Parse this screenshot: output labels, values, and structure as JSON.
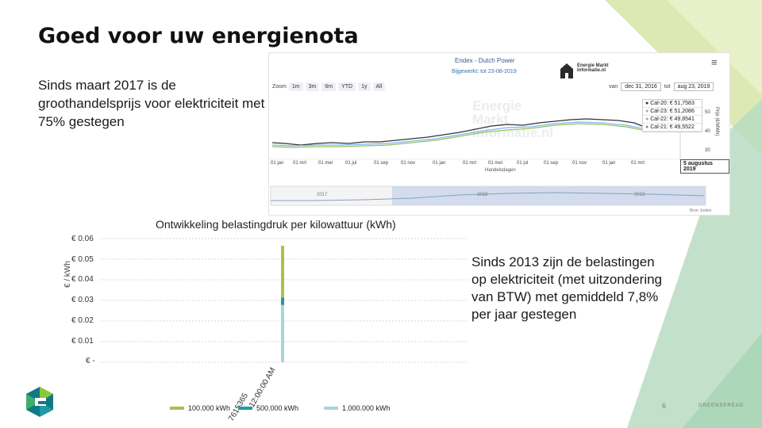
{
  "slide": {
    "title": "Goed voor uw energienota",
    "lead_text": "Sinds maart 2017 is de groothandelsprijs voor elektriciteit met 75% gestegen",
    "right_text": "Sinds 2013 zijn de belastingen op elektriciteit (met uitzondering van BTW) met gemiddeld 7,8% per jaar gestegen",
    "page_number": "6",
    "footer_brand": "GREENSPREAD",
    "accent_colors": {
      "light_green": "#dde9b5",
      "mint": "#b8dcc1",
      "teal": "#1f9aa6"
    }
  },
  "endex": {
    "title": "Endex - Dutch Power",
    "updated": "Bijgewerkt: tot 23-08-2019",
    "brand": "Energie Markt Informatie.nl",
    "menu_icon": "hamburger-icon",
    "zoom_label": "Zoom",
    "zoom_options": [
      "1m",
      "3m",
      "6m",
      "YTD",
      "1y",
      "All"
    ],
    "range_from_label": "van",
    "range_from": "dec 31, 2016",
    "range_to_label": "tot",
    "range_to": "aug 23, 2019",
    "watermark_lines": [
      "Energie",
      "Markt",
      "Informatie.nl"
    ],
    "legend": [
      {
        "label": "Cal-20",
        "value": "€ 51,7583",
        "color": "#333333"
      },
      {
        "label": "Cal-23",
        "value": "€ 51,2086",
        "color": "#7cb5ec"
      },
      {
        "label": "Cal-22",
        "value": "€ 49,8541",
        "color": "#90c060"
      },
      {
        "label": "Cal-21",
        "value": "€ 49,5522",
        "color": "#888888"
      }
    ],
    "date_label": "5 augustus 2019",
    "x_ticks": [
      "01 jan",
      "01 mrt",
      "01 mei",
      "01 jul",
      "01 sep",
      "01 nov",
      "01 jan",
      "01 mrt",
      "01 mei",
      "01 jul",
      "01 sep",
      "01 nov",
      "01 jan",
      "01 mrt"
    ],
    "x_axis_title": "Handelsdagen",
    "y_axis_title": "Prijs (€/MWh)",
    "y_ticks": [
      "50",
      "40",
      "30"
    ],
    "navigator_years": [
      "2017",
      "2018",
      "2019"
    ],
    "credit": "Bron: Endex"
  },
  "chart_data": {
    "type": "bar",
    "title": "Ontwikkeling belastingdruk per kilowattuur (kWh)",
    "ylabel": "€ / kWh",
    "ylim": [
      0,
      0.06
    ],
    "y_ticks": [
      "€ 0.06",
      "€ 0.05",
      "€ 0.04",
      "€ 0.03",
      "€ 0.02",
      "€ 0.01",
      "€ -"
    ],
    "categories": [
      "12:00:00 AM"
    ],
    "category_overlap_label": "7615365",
    "series": [
      {
        "name": "100.000 kWh",
        "values": [
          0.0565
        ],
        "color": "#a6c447"
      },
      {
        "name": "500.000 kWh",
        "values": [
          0.0313
        ],
        "color": "#1f9aa6"
      },
      {
        "name": "1.000.000 kWh",
        "values": [
          0.0278
        ],
        "color": "#a6d6d9"
      }
    ]
  }
}
